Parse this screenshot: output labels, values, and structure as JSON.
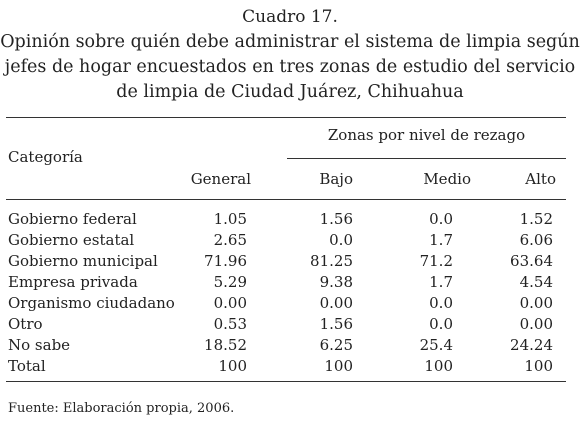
{
  "header": {
    "label": "Cuadro 17.",
    "title_lines": [
      "Opinión sobre quién debe administrar el sistema de limpia según",
      "jefes de hogar encuestados en tres zonas de estudio del servicio",
      "de limpia de Ciudad Juárez, Chihuahua"
    ]
  },
  "table": {
    "category_header": "Categoría",
    "group_header": "Zonas por nivel de rezago",
    "columns": [
      "General",
      "Bajo",
      "Medio",
      "Alto"
    ],
    "rows": [
      [
        "Gobierno federal",
        "1.05",
        "1.56",
        "0.0",
        "1.52"
      ],
      [
        "Gobierno estatal",
        "2.65",
        "0.0",
        "1.7",
        "6.06"
      ],
      [
        "Gobierno municipal",
        "71.96",
        "81.25",
        "71.2",
        "63.64"
      ],
      [
        "Empresa privada",
        "5.29",
        "9.38",
        "1.7",
        "4.54"
      ],
      [
        "Organismo ciudadano",
        "0.00",
        "0.00",
        "0.0",
        "0.00"
      ],
      [
        "Otro",
        "0.53",
        "1.56",
        "0.0",
        "0.00"
      ],
      [
        "No sabe",
        "18.52",
        "6.25",
        "25.4",
        "24.24"
      ],
      [
        "Total",
        "100",
        "100",
        "100",
        "100"
      ]
    ]
  },
  "footer": {
    "source": "Fuente: Elaboración propia, 2006."
  }
}
